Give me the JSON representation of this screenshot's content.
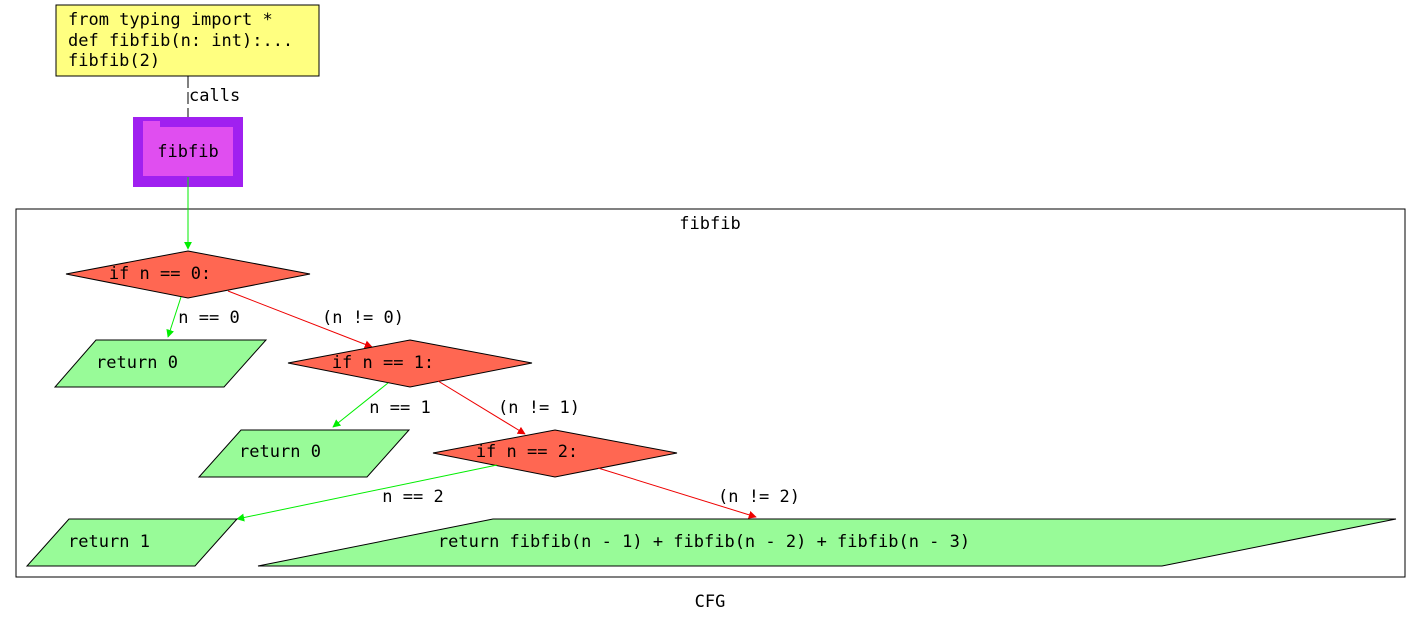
{
  "code_box": {
    "lines": [
      "from typing import *",
      "def fibfib(n: int):...",
      "fibfib(2)"
    ]
  },
  "edge_calls_label": "calls",
  "function_node": {
    "label": "fibfib"
  },
  "cluster": {
    "title": "fibfib"
  },
  "nodes": {
    "if0": "if n == 0:",
    "ret0a": "return 0",
    "if1": "if n == 1:",
    "ret0b": "return 0",
    "if2": "if n == 2:",
    "ret1": "return 1",
    "ret_rec": "return fibfib(n - 1) + fibfib(n - 2) + fibfib(n - 3)"
  },
  "edges": {
    "n_eq_0": "n == 0",
    "n_ne_0": "(n != 0)",
    "n_eq_1": "n == 1",
    "n_ne_1": "(n != 1)",
    "n_eq_2": "n == 2",
    "n_ne_2": "(n != 2)"
  },
  "footer_label": "CFG",
  "colors": {
    "code_fill": "#ffff80",
    "func_outer": "#a020f0",
    "func_inner": "#e04ef0",
    "decision_fill": "#ff6752",
    "return_fill": "#98fb98",
    "true_edge": "#00ee00",
    "false_edge": "#ee0000"
  }
}
